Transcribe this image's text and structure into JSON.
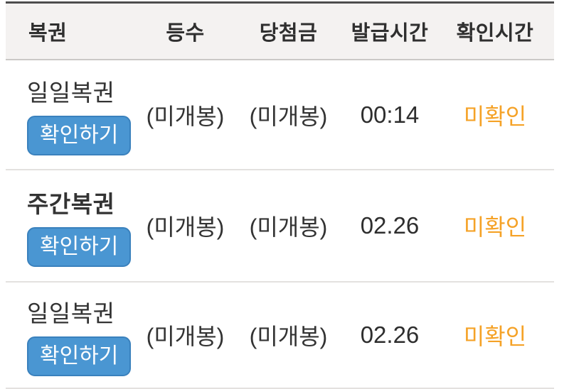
{
  "colors": {
    "header_bg": "#f4f2f1",
    "header_top_border": "#4d4d4d",
    "header_bottom_border": "#cbc9c7",
    "row_divider": "#e3e1df",
    "text_dark": "#333333",
    "orange": "#f5a227",
    "button_bg": "#4a96d2",
    "button_border": "#3a81bd",
    "button_text": "#ffffff"
  },
  "table": {
    "headers": {
      "lottery": "복권",
      "rank": "등수",
      "prize": "당첨금",
      "issued_time": "발급시간",
      "checked_time": "확인시간"
    },
    "rows": [
      {
        "lottery": "일일복권",
        "bold": false,
        "button": "확인하기",
        "rank": "(미개봉)",
        "prize": "(미개봉)",
        "issued_time": "00:14",
        "checked_time": "미확인"
      },
      {
        "lottery": "주간복권",
        "bold": true,
        "button": "확인하기",
        "rank": "(미개봉)",
        "prize": "(미개봉)",
        "issued_time": "02.26",
        "checked_time": "미확인"
      },
      {
        "lottery": "일일복권",
        "bold": false,
        "button": "확인하기",
        "rank": "(미개봉)",
        "prize": "(미개봉)",
        "issued_time": "02.26",
        "checked_time": "미확인"
      }
    ]
  }
}
